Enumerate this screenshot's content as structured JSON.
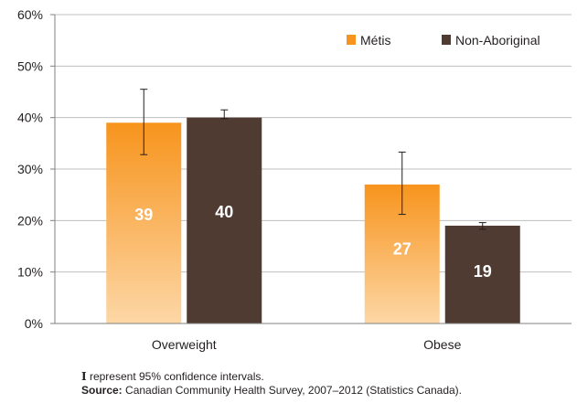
{
  "chart_data": {
    "type": "bar",
    "categories": [
      "Overweight",
      "Obese"
    ],
    "series": [
      {
        "name": "Métis",
        "values": [
          39,
          27
        ],
        "ci_low": [
          32.8,
          21.2
        ],
        "ci_high": [
          45.5,
          33.3
        ],
        "color": "#f7941d",
        "color_light": "#fdd7a6"
      },
      {
        "name": "Non-Aboriginal",
        "values": [
          40,
          19
        ],
        "ci_low": [
          39.8,
          18.3
        ],
        "ci_high": [
          41.5,
          19.6
        ],
        "color": "#4f3b32",
        "color_light": "#4f3b32"
      }
    ],
    "bar_labels": [
      [
        "39",
        "27"
      ],
      [
        "40",
        "19"
      ]
    ],
    "ylim": [
      0,
      60
    ],
    "yticks": [
      "0%",
      "10%",
      "20%",
      "30%",
      "40%",
      "50%",
      "60%"
    ],
    "ytick_values": [
      0,
      10,
      20,
      30,
      40,
      50,
      60
    ],
    "legend_position": "top-right",
    "grid": "horizontal"
  },
  "footnotes": {
    "ci_marker": "I",
    "ci_text": " represent 95% confidence intervals.",
    "source_label": "Source:",
    "source_text": " Canadian Community Health Survey, 2007–2012 (Statistics Canada)."
  }
}
